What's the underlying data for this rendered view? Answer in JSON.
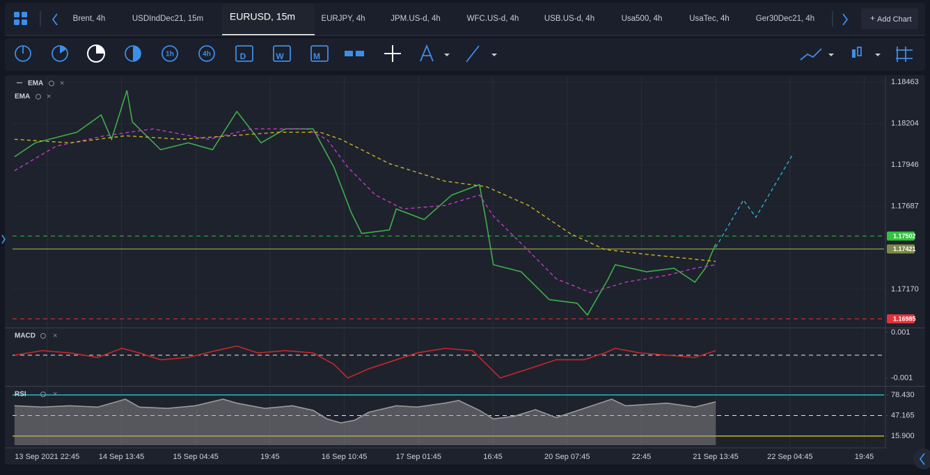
{
  "tabs": [
    "Brent, 4h",
    "USDIndDec21, 15m",
    "EURUSD, 15m",
    "EURJPY, 4h",
    "JPM.US-d, 4h",
    "WFC.US-d, 4h",
    "USB.US-d, 4h",
    "Usa500, 4h",
    "UsaTec, 4h",
    "Ger30Dec21, 4h"
  ],
  "active_tab": 2,
  "add_chart": "Add Chart",
  "toolbar_labels": [
    "1h",
    "4h",
    "D",
    "W",
    "M"
  ],
  "chart_data": [
    {
      "type": "line",
      "series": [
        {
          "color": "#3fae49",
          "x": [
            -6.6,
            -2.4,
            6.0,
            10.9,
            13.0,
            16.1,
            17.2,
            22.9,
            28.5,
            33.4,
            38.3,
            43.2,
            48.1,
            53.7,
            57.9,
            61.4,
            63.5,
            69.1,
            70.5,
            76.1,
            81.7,
            87.3,
            88.7,
            90.1,
            95.7,
            101.4,
            107.0,
            109.1,
            113.3,
            114.7,
            121.0,
            126.6,
            130.8,
            132.9,
            135.0
          ],
          "values": [
            1.17997,
            1.18084,
            1.1815,
            1.18258,
            1.18106,
            1.18411,
            1.18215,
            1.18041,
            1.18084,
            1.18041,
            1.1828,
            1.18084,
            1.18171,
            1.18171,
            1.17932,
            1.17649,
            1.17518,
            1.1754,
            1.17671,
            1.17605,
            1.17758,
            1.17823,
            1.17584,
            1.17323,
            1.17279,
            1.17105,
            1.17083,
            1.17009,
            1.17235,
            1.17323,
            1.17279,
            1.17301,
            1.17214,
            1.17301,
            1.17453
          ]
        },
        {
          "name": "EMA",
          "color": "#c23bc2",
          "dash": true,
          "x": [
            -6.6,
            1.8,
            11.6,
            21.4,
            32.7,
            41.1,
            52.3,
            56.5,
            60.7,
            66.3,
            71.9,
            80.3,
            87.3,
            90.1,
            97.2,
            102.8,
            109.8,
            116.8,
            125.2,
            130.8,
            135.0
          ],
          "values": [
            1.1791,
            1.18063,
            1.18128,
            1.18171,
            1.18106,
            1.18171,
            1.18171,
            1.18106,
            1.17932,
            1.17758,
            1.17671,
            1.17693,
            1.17758,
            1.17627,
            1.1741,
            1.17235,
            1.17148,
            1.17214,
            1.17257,
            1.17301,
            1.17323
          ]
        },
        {
          "name": "EMA",
          "color": "#c9b521",
          "dash": true,
          "x": [
            -6.6,
            4.6,
            15.8,
            27.1,
            36.9,
            46.7,
            55.1,
            59.3,
            69.1,
            80.3,
            88.7,
            97.2,
            105.6,
            112.6,
            121.0,
            128.0,
            135.0
          ],
          "values": [
            1.18106,
            1.18084,
            1.18128,
            1.18106,
            1.18128,
            1.1815,
            1.1815,
            1.18106,
            1.17954,
            1.17845,
            1.1781,
            1.17693,
            1.17518,
            1.17418,
            1.17388,
            1.17366,
            1.17344
          ]
        },
        {
          "color": "#22b5cc",
          "dash": true,
          "x": [
            135.0,
            140.6,
            143.1,
            150.7
          ],
          "values": [
            1.17431,
            1.17727,
            1.17619,
            1.18019
          ]
        }
      ],
      "ylim": [
        1.16935,
        1.18498
      ],
      "yticks": [
        1.18463,
        1.18204,
        1.17946,
        1.17687,
        {
          "value": 1.1717,
          "label": "1.17170"
        }
      ],
      "grid": true,
      "levels": [
        {
          "value": 1.17502,
          "color": "#2fc43a",
          "dash": true
        },
        {
          "value": 1.17421,
          "color": "#7d8a4a",
          "dash": false
        },
        {
          "value": 1.16985,
          "color": "#e0333a",
          "dash": true
        }
      ]
    },
    {
      "type": "line",
      "title": "MACD",
      "x": [
        -6.6,
        -1.0,
        4.6,
        10.2,
        15.1,
        18.6,
        22.9,
        28.5,
        34.1,
        38.3,
        42.5,
        48.1,
        53.7,
        57.9,
        60.7,
        64.9,
        69.1,
        74.7,
        80.3,
        85.9,
        88.7,
        91.5,
        97.2,
        102.8,
        108.4,
        112.6,
        114.7,
        119.6,
        125.2,
        130.8,
        135.0
      ],
      "series": [
        {
          "color": "#c62828",
          "values": [
            0.0,
            0.0002,
            0.0001,
            -0.0001,
            0.0003,
            0.0001,
            -0.0002,
            -0.0001,
            0.0002,
            0.0004,
            0.0001,
            0.0002,
            0.0001,
            -0.0004,
            -0.001,
            -0.0006,
            -0.0003,
            0.0001,
            0.0003,
            0.0002,
            -0.0004,
            -0.001,
            -0.0006,
            -0.0002,
            -0.0002,
            0.0001,
            0.0003,
            0.0001,
            0.0,
            -0.0001,
            0.0002
          ]
        }
      ],
      "ylim": [
        -0.00135,
        0.00115
      ],
      "yticks": [
        0.001,
        -0.001
      ],
      "levels": [
        {
          "value": 0,
          "color": "#e6e6e6",
          "dash": true
        }
      ]
    },
    {
      "type": "area",
      "title": "RSI",
      "x": [
        -6.6,
        -1.0,
        4.6,
        10.2,
        15.8,
        18.6,
        24.3,
        29.9,
        35.5,
        38.3,
        43.9,
        49.5,
        53.7,
        56.5,
        59.3,
        62.1,
        64.9,
        70.5,
        74.7,
        80.3,
        83.1,
        87.3,
        90.1,
        94.3,
        98.6,
        102.8,
        108.4,
        114.0,
        116.8,
        125.2,
        130.8,
        135.0
      ],
      "series": [
        {
          "color": "#9a9a9a",
          "values": [
            62,
            60,
            62,
            60,
            72,
            60,
            58,
            62,
            72,
            66,
            58,
            62,
            55,
            42,
            36,
            40,
            52,
            62,
            60,
            66,
            70,
            55,
            42,
            46,
            56,
            44,
            58,
            72,
            62,
            66,
            60,
            68
          ]
        }
      ],
      "ylim": [
        0,
        90
      ],
      "yticks": [
        {
          "value": 78.43,
          "label": "78.430"
        },
        {
          "value": 47.165,
          "label": "47.165"
        },
        {
          "value": 15.9,
          "label": "15.900"
        }
      ],
      "levels": [
        {
          "value": 78.43,
          "color": "#2ab7c8",
          "dash": false
        },
        {
          "value": 47.165,
          "color": "#e6e6e6",
          "dash": true
        },
        {
          "value": 15.9,
          "color": "#c9b521",
          "dash": false
        }
      ],
      "xlim": [
        -7,
        169
      ],
      "xticks": [
        {
          "value": 0,
          "label": "13 Sep 2021 22:45"
        },
        {
          "value": 15,
          "label": "14 Sep 13:45"
        },
        {
          "value": 30,
          "label": "15 Sep 04:45"
        },
        {
          "value": 45,
          "label": "19:45"
        },
        {
          "value": 60,
          "label": "16 Sep 10:45"
        },
        {
          "value": 75,
          "label": "17 Sep 01:45"
        },
        {
          "value": 90,
          "label": "16:45"
        },
        {
          "value": 105,
          "label": "20 Sep 07:45"
        },
        {
          "value": 120,
          "label": "22:45"
        },
        {
          "value": 135,
          "label": "21 Sep 13:45"
        },
        {
          "value": 150,
          "label": "22 Sep 04:45"
        },
        {
          "value": 165,
          "label": "19:45"
        }
      ]
    }
  ]
}
